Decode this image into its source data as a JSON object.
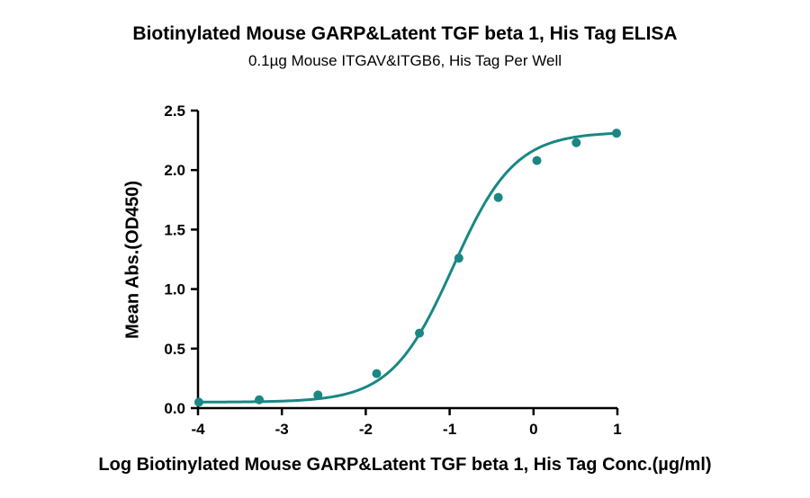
{
  "chart_data": {
    "type": "scatter",
    "title": "Biotinylated Mouse GARP&Latent TGF beta 1, His Tag ELISA",
    "subtitle": "0.1µg Mouse ITGAV&ITGB6, His Tag Per Well",
    "xlabel": "Log Biotinylated Mouse GARP&Latent TGF beta 1, His Tag Conc.(µg/ml)",
    "ylabel": "Mean Abs.(OD450)",
    "xlim": [
      -4,
      1
    ],
    "ylim": [
      0,
      2.5
    ],
    "x_ticks": [
      "-4",
      "-3",
      "-2",
      "-1",
      "0",
      "1"
    ],
    "y_ticks": [
      "0.0",
      "0.5",
      "1.0",
      "1.5",
      "2.0",
      "2.5"
    ],
    "series": [
      {
        "color": "#1a8784",
        "x": [
          -3.99,
          -3.27,
          -2.57,
          -1.87,
          -1.36,
          -0.89,
          -0.42,
          0.04,
          0.51,
          0.99
        ],
        "y": [
          0.05,
          0.07,
          0.11,
          0.29,
          0.63,
          1.26,
          1.77,
          2.08,
          2.23,
          2.31
        ]
      }
    ],
    "fit_curve": {
      "bottom": 0.05,
      "top": 2.32,
      "log_ec50": -0.96,
      "hill_slope": 1.18
    },
    "grid": false
  }
}
